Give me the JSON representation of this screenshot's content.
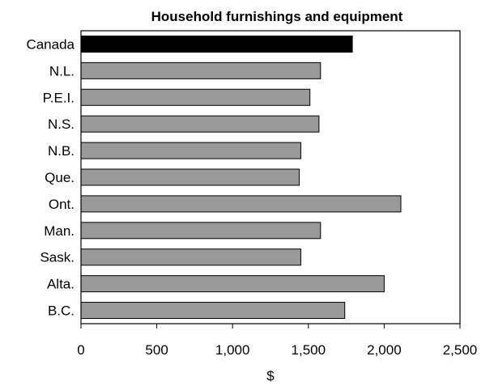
{
  "chart_data": {
    "type": "bar",
    "orientation": "horizontal",
    "title": "Household furnishings and equipment",
    "xlabel": "$",
    "ylabel": "",
    "categories": [
      "Canada",
      "N.L.",
      "P.E.I.",
      "N.S.",
      "N.B.",
      "Que.",
      "Ont.",
      "Man.",
      "Sask.",
      "Alta.",
      "B.C."
    ],
    "values": [
      1790,
      1580,
      1510,
      1570,
      1450,
      1440,
      2110,
      1580,
      1450,
      2000,
      1740
    ],
    "xlim": [
      0,
      2500
    ],
    "xticks": [
      0,
      500,
      1000,
      1500,
      2000,
      2500
    ],
    "xtick_labels": [
      "0",
      "500",
      "1,000",
      "1,500",
      "2,000",
      "2,500"
    ],
    "highlight_category": "Canada",
    "colors": {
      "highlight": "#000000",
      "bar": "#999999",
      "edge": "#000000"
    },
    "grid": false,
    "legend": "none"
  }
}
